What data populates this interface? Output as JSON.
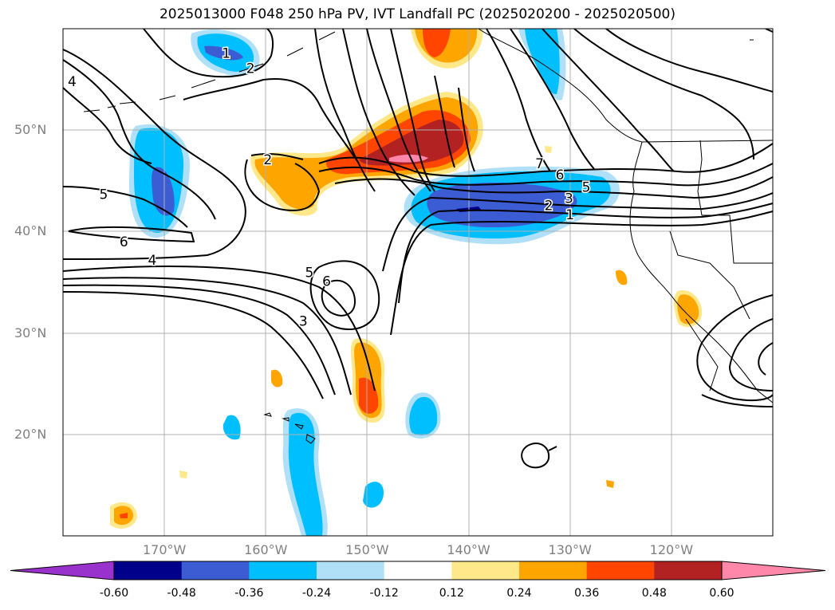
{
  "title": "2025013000 F048 250 hPa PV, IVT Landfall PC (2025020200 - 2025020500)",
  "map": {
    "extent": {
      "lon_min": -180,
      "lon_max": -110,
      "lat_min": 10,
      "lat_max": 60
    },
    "lat_ticks": [
      {
        "value": 50,
        "label": "50°N"
      },
      {
        "value": 40,
        "label": "40°N"
      },
      {
        "value": 30,
        "label": "30°N"
      },
      {
        "value": 20,
        "label": "20°N"
      }
    ],
    "lon_ticks": [
      {
        "value": -170,
        "label": "170°W"
      },
      {
        "value": -160,
        "label": "160°W"
      },
      {
        "value": -150,
        "label": "150°W"
      },
      {
        "value": -140,
        "label": "140°W"
      },
      {
        "value": -130,
        "label": "130°W"
      },
      {
        "value": -120,
        "label": "120°W"
      }
    ],
    "grid": true,
    "contour_labels": [
      {
        "text": "1",
        "lon": -163.9,
        "lat": 57.6
      },
      {
        "text": "2",
        "lon": -161.5,
        "lat": 56.1
      },
      {
        "text": "4",
        "lon": -179.1,
        "lat": 54.8
      },
      {
        "text": "2",
        "lon": -159.8,
        "lat": 47.1
      },
      {
        "text": "5",
        "lon": -176.0,
        "lat": 43.7
      },
      {
        "text": "6",
        "lon": -174.0,
        "lat": 39.0
      },
      {
        "text": "4",
        "lon": -171.2,
        "lat": 37.2
      },
      {
        "text": "5",
        "lon": -155.7,
        "lat": 36.0
      },
      {
        "text": "6",
        "lon": -154.0,
        "lat": 35.1
      },
      {
        "text": "3",
        "lon": -156.3,
        "lat": 31.2
      },
      {
        "text": "7",
        "lon": -133.0,
        "lat": 46.7
      },
      {
        "text": "6",
        "lon": -131.0,
        "lat": 45.6
      },
      {
        "text": "5",
        "lon": -128.4,
        "lat": 44.4
      },
      {
        "text": "3",
        "lon": -130.1,
        "lat": 43.3
      },
      {
        "text": "2",
        "lon": -132.1,
        "lat": 42.6
      },
      {
        "text": "1",
        "lon": -130.0,
        "lat": 41.7
      }
    ]
  },
  "colorbar": {
    "labels": [
      "-0.60",
      "-0.48",
      "-0.36",
      "-0.24",
      "-0.12",
      "0.12",
      "0.24",
      "0.36",
      "0.48",
      "0.60"
    ],
    "colors": [
      "#9932cc",
      "#00008b",
      "#3c5cd4",
      "#00bfff",
      "#b0e0f8",
      "#ffffff",
      "#ffe88a",
      "#ffa500",
      "#ff4500",
      "#b22222",
      "#ff88aa"
    ]
  }
}
